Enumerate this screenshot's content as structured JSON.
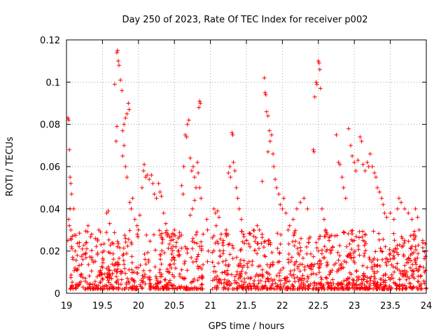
{
  "chart_data": {
    "type": "scatter",
    "title": "Day 250 of 2023, Rate Of TEC Index for receiver p002",
    "xlabel": "GPS time / hours",
    "ylabel": "ROTI / TECUs",
    "xlim": [
      19,
      24
    ],
    "ylim": [
      0,
      0.12
    ],
    "x_ticks": [
      {
        "value": 19,
        "label": "19"
      },
      {
        "value": 19.5,
        "label": "19.5"
      },
      {
        "value": 20,
        "label": "20"
      },
      {
        "value": 20.5,
        "label": "20.5"
      },
      {
        "value": 21,
        "label": "21"
      },
      {
        "value": 21.5,
        "label": "21.5"
      },
      {
        "value": 22,
        "label": "22"
      },
      {
        "value": 22.5,
        "label": "22.5"
      },
      {
        "value": 23,
        "label": "23"
      },
      {
        "value": 23.5,
        "label": "23.5"
      },
      {
        "value": 24,
        "label": "24"
      }
    ],
    "y_ticks": [
      {
        "value": 0,
        "label": "0"
      },
      {
        "value": 0.02,
        "label": "0.02"
      },
      {
        "value": 0.04,
        "label": "0.04"
      },
      {
        "value": 0.06,
        "label": "0.06"
      },
      {
        "value": 0.08,
        "label": "0.08"
      },
      {
        "value": 0.1,
        "label": "0.1"
      },
      {
        "value": 0.12,
        "label": "0.12"
      }
    ],
    "grid": true,
    "marker": "plus",
    "marker_color": "#ff0000",
    "series": [
      {
        "name": "ROTI",
        "points": [
          [
            19.02,
            0.083
          ],
          [
            19.03,
            0.082
          ],
          [
            19.04,
            0.068
          ],
          [
            19.05,
            0.055
          ],
          [
            19.06,
            0.052
          ],
          [
            19.07,
            0.047
          ],
          [
            19.05,
            0.04
          ],
          [
            19.1,
            0.04
          ],
          [
            19.03,
            0.035
          ],
          [
            19.04,
            0.032
          ],
          [
            19.06,
            0.03
          ],
          [
            19.08,
            0.027
          ],
          [
            19.02,
            0.025
          ],
          [
            19.07,
            0.022
          ],
          [
            19.12,
            0.02
          ],
          [
            19.15,
            0.018
          ],
          [
            19.18,
            0.024
          ],
          [
            19.22,
            0.021
          ],
          [
            19.27,
            0.019
          ],
          [
            19.3,
            0.032
          ],
          [
            19.35,
            0.028
          ],
          [
            19.4,
            0.026
          ],
          [
            19.45,
            0.03
          ],
          [
            19.48,
            0.023
          ],
          [
            19.52,
            0.02
          ],
          [
            19.56,
            0.038
          ],
          [
            19.58,
            0.039
          ],
          [
            19.6,
            0.033
          ],
          [
            19.67,
            0.099
          ],
          [
            19.7,
            0.114
          ],
          [
            19.71,
            0.115
          ],
          [
            19.72,
            0.11
          ],
          [
            19.73,
            0.108
          ],
          [
            19.75,
            0.101
          ],
          [
            19.77,
            0.096
          ],
          [
            19.69,
            0.072
          ],
          [
            19.7,
            0.079
          ],
          [
            19.78,
            0.077
          ],
          [
            19.8,
            0.08
          ],
          [
            19.82,
            0.083
          ],
          [
            19.84,
            0.085
          ],
          [
            19.86,
            0.09
          ],
          [
            19.87,
            0.087
          ],
          [
            19.78,
            0.065
          ],
          [
            19.8,
            0.07
          ],
          [
            19.82,
            0.06
          ],
          [
            19.84,
            0.055
          ],
          [
            19.88,
            0.043
          ],
          [
            19.9,
            0.04
          ],
          [
            19.92,
            0.045
          ],
          [
            19.95,
            0.035
          ],
          [
            19.98,
            0.032
          ],
          [
            20.0,
            0.03
          ],
          [
            20.02,
            0.037
          ],
          [
            20.05,
            0.05
          ],
          [
            20.07,
            0.058
          ],
          [
            20.08,
            0.061
          ],
          [
            20.1,
            0.055
          ],
          [
            20.12,
            0.056
          ],
          [
            20.15,
            0.054
          ],
          [
            20.18,
            0.056
          ],
          [
            20.2,
            0.052
          ],
          [
            20.22,
            0.047
          ],
          [
            20.25,
            0.045
          ],
          [
            20.28,
            0.052
          ],
          [
            20.3,
            0.048
          ],
          [
            20.32,
            0.046
          ],
          [
            20.35,
            0.038
          ],
          [
            20.38,
            0.033
          ],
          [
            20.4,
            0.028
          ],
          [
            20.45,
            0.025
          ],
          [
            20.5,
            0.03
          ],
          [
            20.52,
            0.022
          ],
          [
            20.55,
            0.02
          ],
          [
            20.6,
            0.051
          ],
          [
            20.62,
            0.047
          ],
          [
            20.63,
            0.06
          ],
          [
            20.65,
            0.075
          ],
          [
            20.67,
            0.074
          ],
          [
            20.68,
            0.08
          ],
          [
            20.7,
            0.082
          ],
          [
            20.72,
            0.064
          ],
          [
            20.74,
            0.058
          ],
          [
            20.76,
            0.06
          ],
          [
            20.78,
            0.055
          ],
          [
            20.8,
            0.05
          ],
          [
            20.82,
            0.062
          ],
          [
            20.84,
            0.088
          ],
          [
            20.85,
            0.091
          ],
          [
            20.86,
            0.09
          ],
          [
            20.83,
            0.057
          ],
          [
            20.85,
            0.05
          ],
          [
            20.87,
            0.045
          ],
          [
            20.78,
            0.044
          ],
          [
            20.75,
            0.04
          ],
          [
            20.72,
            0.037
          ],
          [
            20.95,
            0.035
          ],
          [
            20.96,
            0.03
          ],
          [
            20.97,
            0.02
          ],
          [
            20.96,
            0.015
          ],
          [
            21.05,
            0.04
          ],
          [
            21.07,
            0.038
          ],
          [
            21.08,
            0.032
          ],
          [
            21.1,
            0.039
          ],
          [
            21.12,
            0.036
          ],
          [
            21.15,
            0.028
          ],
          [
            21.18,
            0.025
          ],
          [
            21.22,
            0.03
          ],
          [
            21.25,
            0.057
          ],
          [
            21.27,
            0.06
          ],
          [
            21.28,
            0.055
          ],
          [
            21.3,
            0.076
          ],
          [
            21.31,
            0.075
          ],
          [
            21.32,
            0.062
          ],
          [
            21.34,
            0.058
          ],
          [
            21.36,
            0.05
          ],
          [
            21.38,
            0.045
          ],
          [
            21.4,
            0.04
          ],
          [
            21.43,
            0.035
          ],
          [
            21.46,
            0.028
          ],
          [
            21.5,
            0.025
          ],
          [
            21.55,
            0.022
          ],
          [
            21.6,
            0.027
          ],
          [
            21.65,
            0.032
          ],
          [
            21.68,
            0.03
          ],
          [
            21.72,
            0.053
          ],
          [
            21.75,
            0.102
          ],
          [
            21.76,
            0.095
          ],
          [
            21.77,
            0.094
          ],
          [
            21.78,
            0.086
          ],
          [
            21.8,
            0.084
          ],
          [
            21.82,
            0.077
          ],
          [
            21.83,
            0.072
          ],
          [
            21.85,
            0.075
          ],
          [
            21.8,
            0.067
          ],
          [
            21.87,
            0.066
          ],
          [
            21.88,
            0.06
          ],
          [
            21.9,
            0.054
          ],
          [
            21.92,
            0.05
          ],
          [
            21.95,
            0.047
          ],
          [
            21.97,
            0.042
          ],
          [
            22.0,
            0.04
          ],
          [
            22.02,
            0.045
          ],
          [
            22.05,
            0.038
          ],
          [
            22.08,
            0.03
          ],
          [
            22.1,
            0.032
          ],
          [
            22.15,
            0.035
          ],
          [
            22.2,
            0.04
          ],
          [
            22.25,
            0.043
          ],
          [
            22.3,
            0.045
          ],
          [
            22.35,
            0.04
          ],
          [
            22.43,
            0.068
          ],
          [
            22.44,
            0.067
          ],
          [
            22.45,
            0.093
          ],
          [
            22.47,
            0.1
          ],
          [
            22.48,
            0.099
          ],
          [
            22.5,
            0.11
          ],
          [
            22.51,
            0.109
          ],
          [
            22.52,
            0.106
          ],
          [
            22.53,
            0.097
          ],
          [
            22.55,
            0.04
          ],
          [
            22.58,
            0.035
          ],
          [
            22.6,
            0.03
          ],
          [
            22.62,
            0.028
          ],
          [
            22.65,
            0.025
          ],
          [
            22.7,
            0.022
          ],
          [
            22.75,
            0.075
          ],
          [
            22.78,
            0.062
          ],
          [
            22.8,
            0.061
          ],
          [
            22.83,
            0.055
          ],
          [
            22.85,
            0.05
          ],
          [
            22.88,
            0.045
          ],
          [
            22.92,
            0.078
          ],
          [
            22.95,
            0.07
          ],
          [
            22.97,
            0.065
          ],
          [
            23.0,
            0.062
          ],
          [
            23.02,
            0.058
          ],
          [
            23.05,
            0.063
          ],
          [
            23.08,
            0.074
          ],
          [
            23.1,
            0.072
          ],
          [
            23.12,
            0.061
          ],
          [
            23.15,
            0.058
          ],
          [
            23.18,
            0.062
          ],
          [
            23.2,
            0.06
          ],
          [
            23.22,
            0.066
          ],
          [
            23.25,
            0.06
          ],
          [
            23.28,
            0.057
          ],
          [
            23.3,
            0.055
          ],
          [
            23.32,
            0.05
          ],
          [
            23.35,
            0.048
          ],
          [
            23.38,
            0.045
          ],
          [
            23.4,
            0.042
          ],
          [
            23.42,
            0.038
          ],
          [
            23.45,
            0.036
          ],
          [
            23.5,
            0.038
          ],
          [
            23.55,
            0.035
          ],
          [
            23.6,
            0.04
          ],
          [
            23.62,
            0.045
          ],
          [
            23.65,
            0.043
          ],
          [
            23.7,
            0.04
          ],
          [
            23.75,
            0.038
          ],
          [
            23.8,
            0.035
          ],
          [
            23.85,
            0.04
          ],
          [
            23.88,
            0.036
          ],
          [
            23.9,
            0.03
          ],
          [
            23.95,
            0.025
          ],
          [
            24.0,
            0.02
          ]
        ]
      }
    ]
  }
}
